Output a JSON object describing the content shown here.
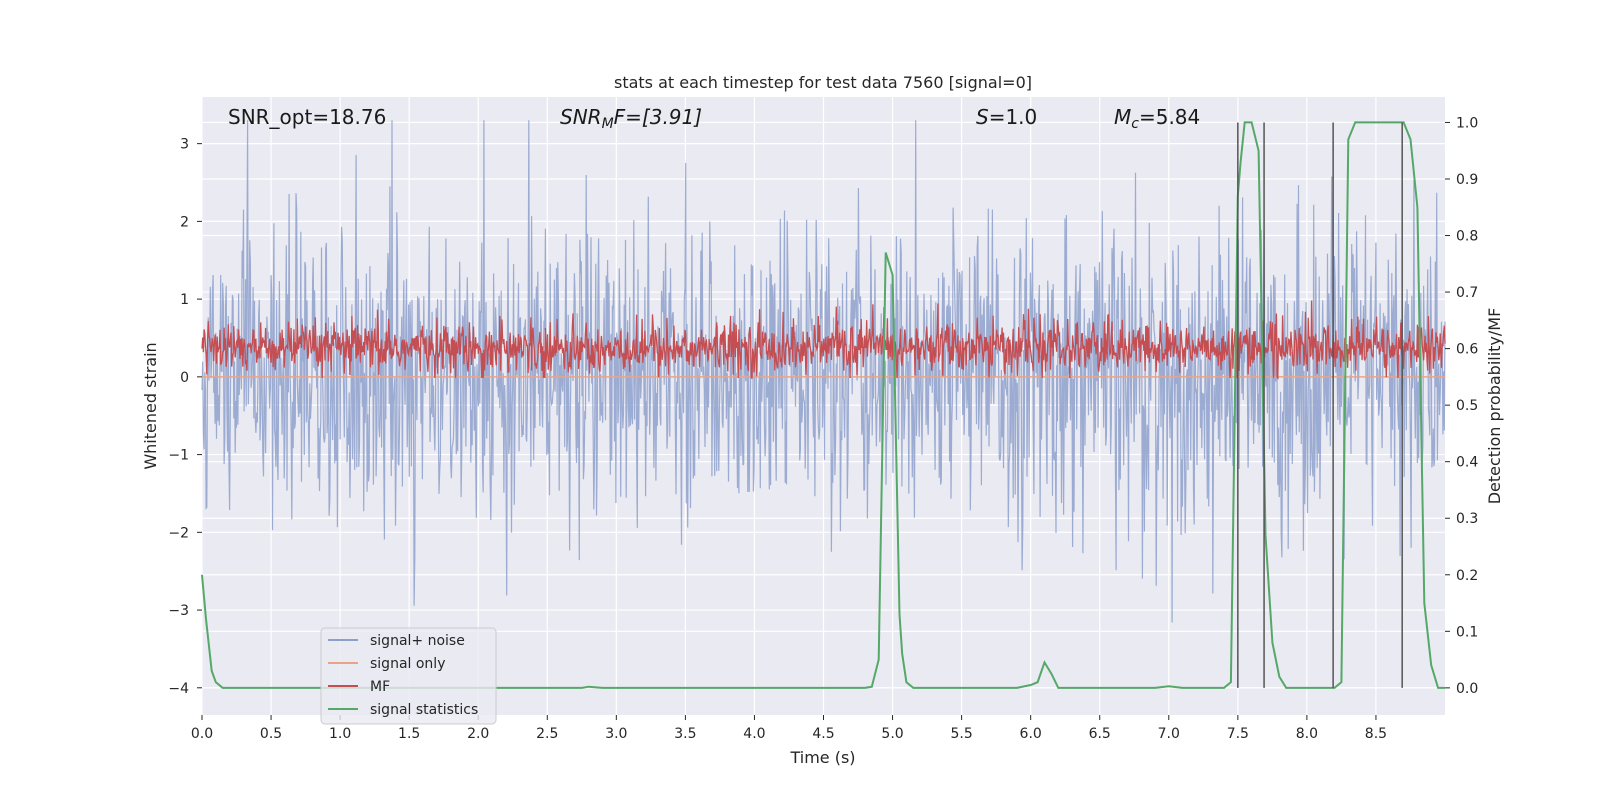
{
  "chart_data": {
    "type": "line",
    "title": "stats at each timestep for test data 7560 [signal=0]",
    "xlabel": "Time (s)",
    "ylabel_left": "Whitened strain",
    "ylabel_right": "Detection probability/MF",
    "xlim": [
      0.0,
      9.0
    ],
    "ylim_left": [
      -4.35,
      3.6
    ],
    "ylim_right": [
      -0.048,
      1.045
    ],
    "x_ticks": [
      "0.0",
      "0.5",
      "1.0",
      "1.5",
      "2.0",
      "2.5",
      "3.0",
      "3.5",
      "4.0",
      "4.5",
      "5.0",
      "5.5",
      "6.0",
      "6.5",
      "7.0",
      "7.5",
      "8.0",
      "8.5"
    ],
    "x_tick_values": [
      0.0,
      0.5,
      1.0,
      1.5,
      2.0,
      2.5,
      3.0,
      3.5,
      4.0,
      4.5,
      5.0,
      5.5,
      6.0,
      6.5,
      7.0,
      7.5,
      8.0,
      8.5
    ],
    "y_left_ticks": [
      "−4",
      "−3",
      "−2",
      "−1",
      "0",
      "1",
      "2",
      "3"
    ],
    "y_left_tick_values": [
      -4,
      -3,
      -2,
      -1,
      0,
      1,
      2,
      3
    ],
    "y_right_ticks": [
      "0.0",
      "0.1",
      "0.2",
      "0.3",
      "0.4",
      "0.5",
      "0.6",
      "0.7",
      "0.8",
      "0.9",
      "1.0"
    ],
    "y_right_tick_values": [
      0.0,
      0.1,
      0.2,
      0.3,
      0.4,
      0.5,
      0.6,
      0.7,
      0.8,
      0.9,
      1.0
    ],
    "annotations": {
      "snr_opt": "SNR_opt=18.76",
      "snr_mf_sym": "SNR",
      "snr_mf_sub": "M",
      "snr_mf_tail": "F=[3.91]",
      "s_sym": "S",
      "s_tail": "=1.0",
      "mc_sym": "M",
      "mc_sub": "c",
      "mc_tail": "=5.84"
    },
    "legend": {
      "placement": "lower-left",
      "entries": [
        {
          "label": "signal+ noise",
          "color": "#8da0cb"
        },
        {
          "label": "signal only",
          "color": "#e8a488"
        },
        {
          "label": "MF",
          "color": "#c44e52"
        },
        {
          "label": "signal statistics",
          "color": "#55a868"
        }
      ]
    },
    "series": [
      {
        "name": "signal+ noise",
        "color": "#8da0cb",
        "axis": "left",
        "kind": "dense-noise",
        "approx_envelope": [
          -2.5,
          2.5
        ],
        "samples": 1800
      },
      {
        "name": "signal only",
        "color": "#e8a488",
        "axis": "left",
        "kind": "flat",
        "value": 0.0
      },
      {
        "name": "MF",
        "color": "#c44e52",
        "axis": "right",
        "kind": "dense-noise",
        "approx_range": [
          0.55,
          0.68
        ],
        "samples": 1800
      },
      {
        "name": "signal statistics",
        "color": "#55a868",
        "axis": "right",
        "kind": "line",
        "x": [
          0.0,
          0.03,
          0.07,
          0.1,
          0.15,
          0.2,
          0.3,
          0.5,
          1.0,
          1.5,
          2.0,
          2.5,
          2.75,
          2.8,
          2.9,
          3.0,
          3.5,
          4.0,
          4.5,
          4.8,
          4.85,
          4.9,
          4.95,
          5.0,
          5.05,
          5.07,
          5.1,
          5.15,
          5.2,
          5.5,
          5.9,
          6.0,
          6.05,
          6.1,
          6.15,
          6.2,
          6.25,
          6.3,
          6.5,
          6.9,
          7.0,
          7.1,
          7.4,
          7.45,
          7.5,
          7.52,
          7.55,
          7.6,
          7.65,
          7.7,
          7.75,
          7.8,
          7.85,
          7.9,
          7.95,
          8.0,
          8.2,
          8.25,
          8.3,
          8.35,
          8.4,
          8.6,
          8.65,
          8.7,
          8.75,
          8.8,
          8.85,
          8.9,
          8.95,
          9.0
        ],
        "y": [
          0.2,
          0.12,
          0.03,
          0.01,
          0.0,
          0.0,
          0.0,
          0.0,
          0.0,
          0.0,
          0.0,
          0.0,
          0.0,
          0.002,
          0.0,
          0.0,
          0.0,
          0.0,
          0.0,
          0.0,
          0.002,
          0.05,
          0.77,
          0.73,
          0.13,
          0.06,
          0.01,
          0.0,
          0.0,
          0.0,
          0.0,
          0.005,
          0.01,
          0.045,
          0.025,
          0.0,
          0.0,
          0.0,
          0.0,
          0.0,
          0.003,
          0.0,
          0.0,
          0.01,
          0.87,
          0.93,
          1.0,
          1.0,
          0.95,
          0.27,
          0.08,
          0.02,
          0.0,
          0.0,
          0.0,
          0.0,
          0.0,
          0.01,
          0.97,
          1.0,
          1.0,
          1.0,
          1.0,
          1.0,
          0.97,
          0.85,
          0.15,
          0.04,
          0.0,
          0.0
        ]
      }
    ],
    "vertical_lines_x": [
      7.5,
      7.69,
      8.19,
      8.69
    ],
    "vertical_line_color": "#555555",
    "grid": true,
    "background": "#eaeaf2"
  }
}
